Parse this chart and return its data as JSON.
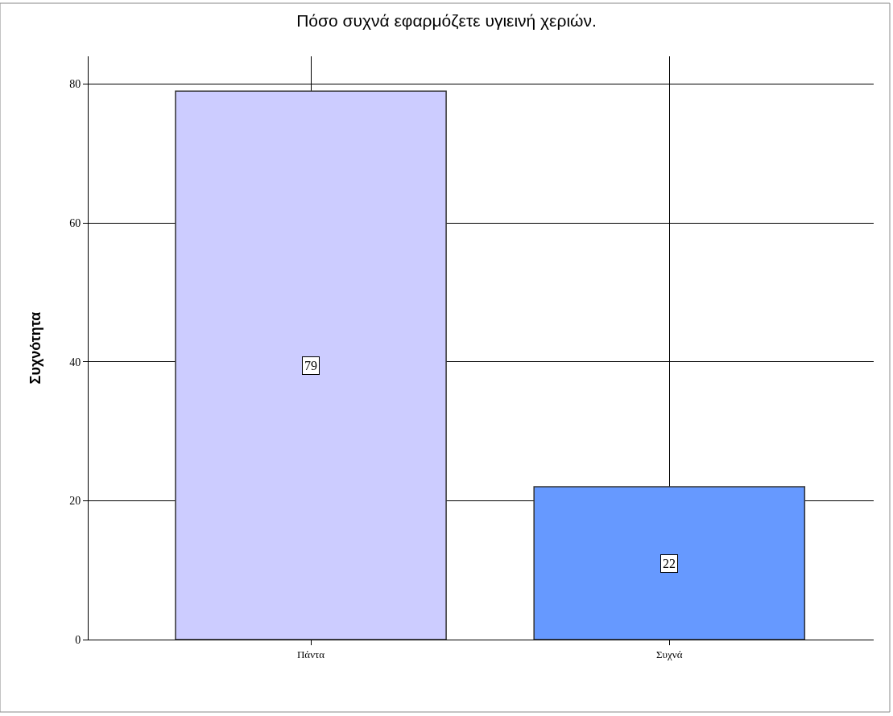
{
  "chart_data": {
    "type": "bar",
    "title": "Πόσο συχνά εφαρμόζετε υγιεινή χεριών.",
    "ylabel": "Συχνότητα",
    "categories": [
      "Πάντα",
      "Συχνά"
    ],
    "values": [
      79,
      22
    ],
    "colors": [
      "#ccccff",
      "#6699ff"
    ],
    "ylim": [
      0,
      84
    ],
    "yticks": [
      0,
      20,
      40,
      60,
      80
    ],
    "grid": true,
    "data_labels": true
  }
}
